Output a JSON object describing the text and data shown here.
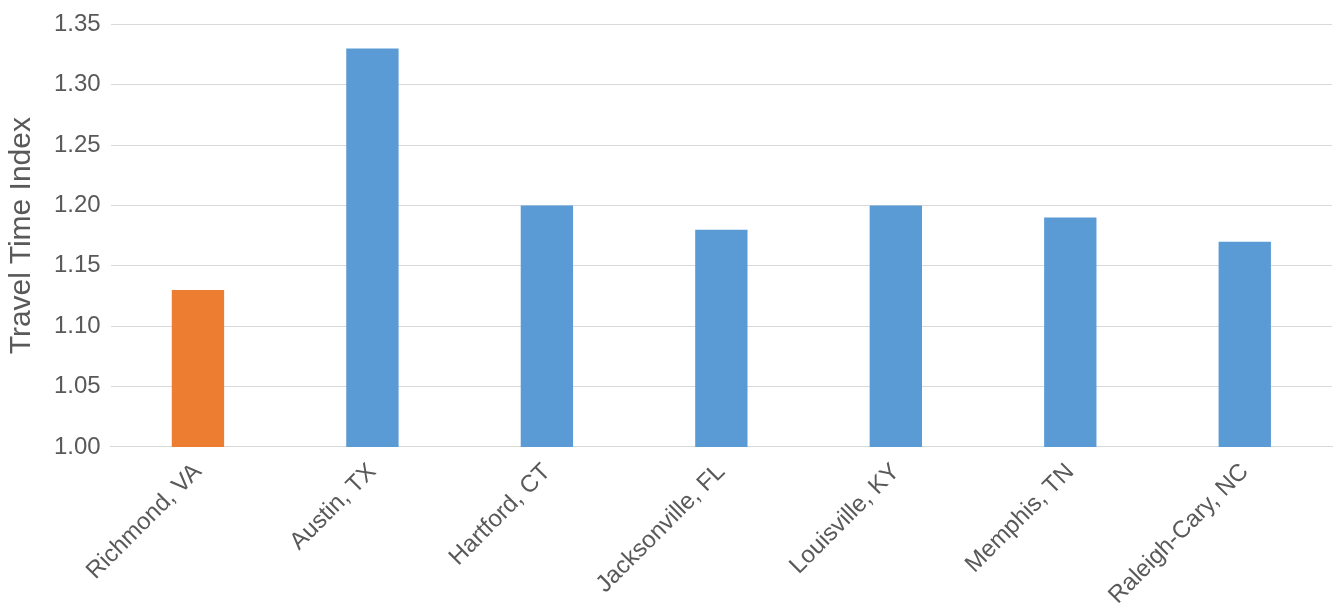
{
  "chart_data": {
    "type": "bar",
    "ylabel": "Travel Time Index",
    "categories": [
      "Richmond, VA",
      "Austin, TX",
      "Hartford, CT",
      "Jacksonville, FL",
      "Louisville, KY",
      "Memphis, TN",
      "Raleigh-Cary, NC"
    ],
    "values": [
      1.13,
      1.33,
      1.2,
      1.18,
      1.2,
      1.19,
      1.17
    ],
    "colors": [
      "#ed7d31",
      "#5b9bd5",
      "#5b9bd5",
      "#5b9bd5",
      "#5b9bd5",
      "#5b9bd5",
      "#5b9bd5"
    ],
    "ylim": [
      1.0,
      1.35
    ],
    "yticks": [
      {
        "value": 1.0,
        "label": "1.00"
      },
      {
        "value": 1.05,
        "label": "1.05"
      },
      {
        "value": 1.1,
        "label": "1.10"
      },
      {
        "value": 1.15,
        "label": "1.15"
      },
      {
        "value": 1.2,
        "label": "1.20"
      },
      {
        "value": 1.25,
        "label": "1.25"
      },
      {
        "value": 1.3,
        "label": "1.30"
      },
      {
        "value": 1.35,
        "label": "1.35"
      }
    ],
    "grid": "y"
  }
}
